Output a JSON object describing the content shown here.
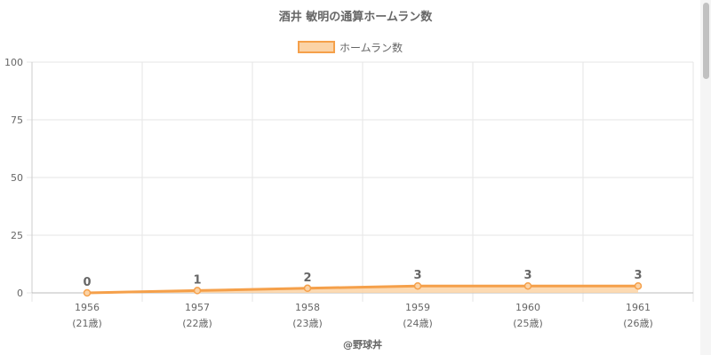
{
  "chart_data": {
    "type": "area",
    "title": "酒井 敏明の通算ホームラン数",
    "legend": [
      "ホームラン数"
    ],
    "legend_position": "top-center",
    "categories": [
      "1956",
      "1957",
      "1958",
      "1959",
      "1960",
      "1961"
    ],
    "category_sublabels": [
      "(21歳)",
      "(22歳)",
      "(23歳)",
      "(24歳)",
      "(25歳)",
      "(26歳)"
    ],
    "series": [
      {
        "name": "ホームラン数",
        "values": [
          0,
          1,
          2,
          3,
          3,
          3
        ],
        "line_color": "#f5a04a",
        "fill_color": "#fbd3a6"
      }
    ],
    "data_labels": [
      "0",
      "1",
      "2",
      "3",
      "3",
      "3"
    ],
    "ylim": [
      0,
      100
    ],
    "yticks": [
      0,
      25,
      50,
      75,
      100
    ],
    "ytick_labels": [
      "0",
      "25",
      "50",
      "75",
      "100"
    ],
    "grid": true,
    "xlabel": "",
    "ylabel": ""
  },
  "credit": "@野球丼"
}
